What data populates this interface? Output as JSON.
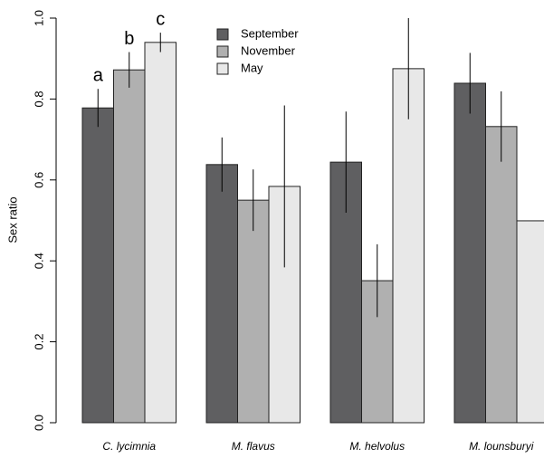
{
  "chart_data": {
    "type": "bar",
    "ylabel": "Sex ratio",
    "categories": [
      "C. lycimnia",
      "M. flavus",
      "M. helvolus",
      "M. lounsburyi"
    ],
    "series": [
      {
        "name": "September",
        "color": "#5f5f61",
        "values": [
          0.778,
          0.638,
          0.644,
          0.839
        ],
        "errors": [
          0.047,
          0.067,
          0.125,
          0.075
        ]
      },
      {
        "name": "November",
        "color": "#b0b0b0",
        "values": [
          0.872,
          0.55,
          0.351,
          0.732
        ],
        "errors": [
          0.044,
          0.076,
          0.09,
          0.087
        ]
      },
      {
        "name": "May",
        "color": "#e8e8e8",
        "values": [
          0.94,
          0.584,
          0.875,
          0.499
        ],
        "errors": [
          0.024,
          0.2,
          0.125,
          null
        ]
      }
    ],
    "annotations": [
      {
        "text": "a",
        "category": "C. lycimnia",
        "series": "September"
      },
      {
        "text": "b",
        "category": "C. lycimnia",
        "series": "November"
      },
      {
        "text": "c",
        "category": "C. lycimnia",
        "series": "May"
      }
    ],
    "ylim": [
      0,
      1.0
    ],
    "yticks": [
      {
        "value": 0,
        "label": "0.0"
      },
      0.2,
      0.4,
      0.6,
      0.8,
      {
        "value": 1.0,
        "label": "1.0"
      }
    ],
    "legend": "top-center"
  }
}
